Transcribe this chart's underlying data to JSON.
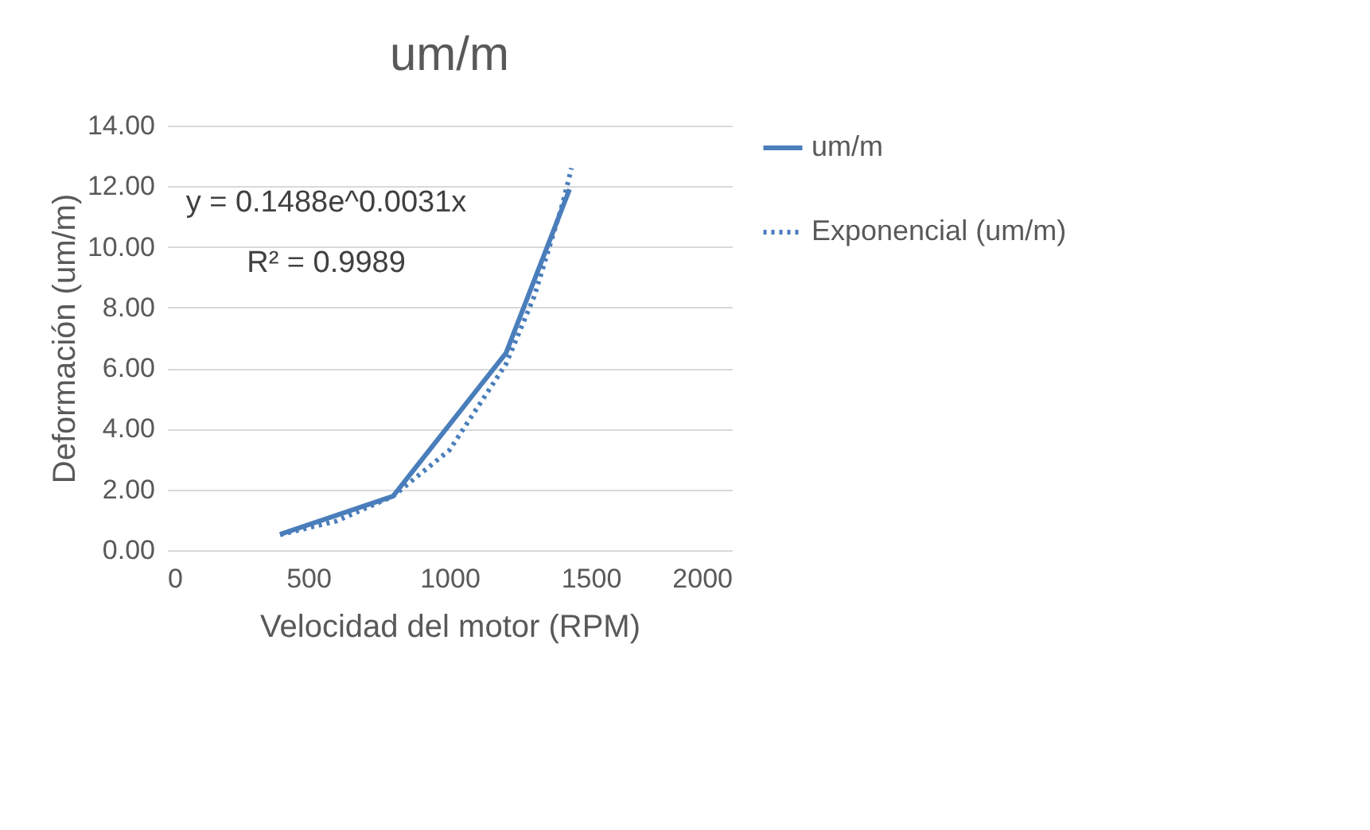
{
  "chart_data": {
    "type": "line",
    "title": "um/m",
    "xlabel": "Velocidad del motor (RPM)",
    "ylabel": "Deformación (um/m)",
    "series": [
      {
        "name": "um/m",
        "color": "#4a7ebb",
        "line_style": "solid",
        "x": [
          400,
          800,
          1200,
          1425
        ],
        "values": [
          0.52,
          1.78,
          6.5,
          11.9
        ]
      },
      {
        "name": "Exponencial (um/m)",
        "color": "#4a7ebb",
        "line_style": "dotted",
        "x": [
          400,
          600,
          800,
          1000,
          1200,
          1300,
          1400,
          1432
        ],
        "values": [
          0.51,
          0.96,
          1.78,
          3.3,
          6.14,
          8.37,
          11.41,
          12.6
        ]
      }
    ],
    "xlim": [
      0,
      2000
    ],
    "xticks": [
      0,
      500,
      1000,
      1500,
      2000
    ],
    "ylim": [
      0,
      14
    ],
    "yticks": [
      {
        "value": 0,
        "label": "0.00"
      },
      {
        "value": 2,
        "label": "2.00"
      },
      {
        "value": 4,
        "label": "4.00"
      },
      {
        "value": 6,
        "label": "6.00"
      },
      {
        "value": 8,
        "label": "8.00"
      },
      {
        "value": 10,
        "label": "10.00"
      },
      {
        "value": 12,
        "label": "12.00"
      },
      {
        "value": 14,
        "label": "14.00"
      }
    ],
    "annotations": [
      "y = 0.1488e^0.0031x",
      "R² = 0.9989"
    ],
    "grid": "y",
    "legend": "right",
    "marker": "none"
  }
}
